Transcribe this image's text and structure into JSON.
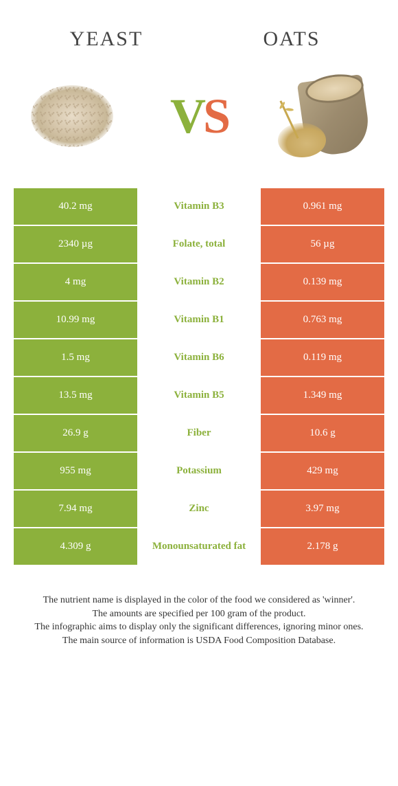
{
  "header": {
    "left_title": "YEAST",
    "right_title": "OATS",
    "vs_v": "V",
    "vs_s": "S"
  },
  "colors": {
    "left": "#8cb13c",
    "right": "#e36b45",
    "winner_text_left": "#8cb13c",
    "winner_text_right": "#e36b45"
  },
  "rows": [
    {
      "left": "40.2 mg",
      "nutrient": "Vitamin B3",
      "right": "0.961 mg",
      "winner": "left"
    },
    {
      "left": "2340 µg",
      "nutrient": "Folate, total",
      "right": "56 µg",
      "winner": "left"
    },
    {
      "left": "4 mg",
      "nutrient": "Vitamin B2",
      "right": "0.139 mg",
      "winner": "left"
    },
    {
      "left": "10.99 mg",
      "nutrient": "Vitamin B1",
      "right": "0.763 mg",
      "winner": "left"
    },
    {
      "left": "1.5 mg",
      "nutrient": "Vitamin B6",
      "right": "0.119 mg",
      "winner": "left"
    },
    {
      "left": "13.5 mg",
      "nutrient": "Vitamin B5",
      "right": "1.349 mg",
      "winner": "left"
    },
    {
      "left": "26.9 g",
      "nutrient": "Fiber",
      "right": "10.6 g",
      "winner": "left"
    },
    {
      "left": "955 mg",
      "nutrient": "Potassium",
      "right": "429 mg",
      "winner": "left"
    },
    {
      "left": "7.94 mg",
      "nutrient": "Zinc",
      "right": "3.97 mg",
      "winner": "left"
    },
    {
      "left": "4.309 g",
      "nutrient": "Monounsaturated fat",
      "right": "2.178 g",
      "winner": "left"
    }
  ],
  "footer": {
    "line1": "The nutrient name is displayed in the color of the food we considered as 'winner'.",
    "line2": "The amounts are specified per 100 gram of the product.",
    "line3": "The infographic aims to display only the significant differences, ignoring minor ones.",
    "line4": "The main source of information is USDA Food Composition Database."
  }
}
